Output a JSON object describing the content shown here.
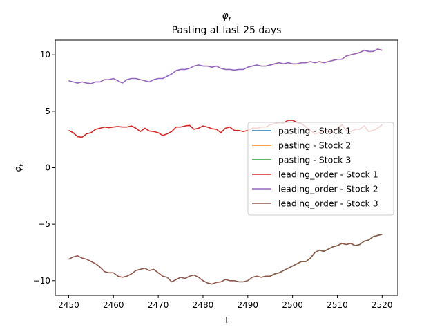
{
  "chart_data": {
    "type": "line",
    "title": "φ_t",
    "subtitle": "Pasting at last 25 days",
    "xlabel": "T",
    "ylabel": "φ_t",
    "xlim": [
      2447,
      2523.5
    ],
    "ylim": [
      -11.3,
      11.3
    ],
    "xticks": [
      2450,
      2460,
      2470,
      2480,
      2490,
      2500,
      2510,
      2520
    ],
    "yticks": [
      -10,
      -5,
      0,
      5,
      10
    ],
    "grid": false,
    "legend_position": "center-right",
    "series": [
      {
        "name": "pasting - Stock 1",
        "color": "#1f77b4",
        "x": [
          2495,
          2496,
          2497,
          2498,
          2499,
          2500,
          2501,
          2502,
          2503,
          2504,
          2505,
          2506,
          2507,
          2508,
          2509,
          2510,
          2511,
          2512,
          2513,
          2514,
          2515,
          2516,
          2517,
          2518,
          2519,
          2520
        ],
        "y": [
          3.8,
          3.9,
          4.0,
          3.95,
          4.2,
          4.2,
          4.0,
          3.9,
          3.6,
          3.3,
          3.0,
          3.1,
          3.3,
          3.2,
          3.1,
          3.5,
          3.8,
          3.3,
          3.2,
          3.4,
          3.4,
          3.7,
          3.2,
          3.3,
          3.5,
          3.8
        ]
      },
      {
        "name": "pasting - Stock 2",
        "color": "#ff7f0e",
        "x": [
          2495,
          2496,
          2497,
          2498,
          2499,
          2500,
          2501,
          2502,
          2503,
          2504,
          2505,
          2506,
          2507,
          2508,
          2509,
          2510,
          2511,
          2512,
          2513,
          2514,
          2515,
          2516,
          2517,
          2518,
          2519,
          2520
        ],
        "y": [
          9.1,
          9.2,
          9.3,
          9.2,
          9.3,
          9.2,
          9.2,
          9.3,
          9.3,
          9.4,
          9.3,
          9.4,
          9.3,
          9.4,
          9.5,
          9.6,
          9.6,
          9.9,
          10.0,
          10.1,
          10.2,
          10.4,
          10.3,
          10.3,
          10.5,
          10.4
        ]
      },
      {
        "name": "pasting - Stock 3",
        "color": "#2ca02c",
        "x": [
          2495,
          2496,
          2497,
          2498,
          2499,
          2500,
          2501,
          2502,
          2503,
          2504,
          2505,
          2506,
          2507,
          2508,
          2509,
          2510,
          2511,
          2512,
          2513,
          2514,
          2515,
          2516,
          2517,
          2518,
          2519,
          2520
        ],
        "y": [
          -9.6,
          -9.4,
          -9.3,
          -9.1,
          -8.9,
          -8.7,
          -8.5,
          -8.3,
          -8.3,
          -8.0,
          -7.5,
          -7.3,
          -7.4,
          -7.2,
          -7.0,
          -6.9,
          -6.7,
          -6.8,
          -6.7,
          -6.9,
          -6.8,
          -6.5,
          -6.4,
          -6.1,
          -6.0,
          -5.9
        ]
      },
      {
        "name": "leading_order - Stock 1",
        "color": "#d62728",
        "x": [
          2450,
          2451,
          2452,
          2453,
          2454,
          2455,
          2456,
          2457,
          2458,
          2459,
          2460,
          2461,
          2462,
          2463,
          2464,
          2465,
          2466,
          2467,
          2468,
          2469,
          2470,
          2471,
          2472,
          2473,
          2474,
          2475,
          2476,
          2477,
          2478,
          2479,
          2480,
          2481,
          2482,
          2483,
          2484,
          2485,
          2486,
          2487,
          2488,
          2489,
          2490,
          2491,
          2492,
          2493,
          2494,
          2495,
          2496,
          2497,
          2498,
          2499,
          2500,
          2501,
          2502,
          2503,
          2504,
          2505,
          2506,
          2507,
          2508,
          2509,
          2510,
          2511,
          2512,
          2513,
          2514,
          2515,
          2516,
          2517,
          2518,
          2519,
          2520
        ],
        "y": [
          3.3,
          3.1,
          2.75,
          2.7,
          3.0,
          3.1,
          3.4,
          3.5,
          3.6,
          3.55,
          3.6,
          3.65,
          3.6,
          3.6,
          3.7,
          3.5,
          3.2,
          3.5,
          3.25,
          3.2,
          3.1,
          2.85,
          3.0,
          3.2,
          3.6,
          3.6,
          3.7,
          3.75,
          3.4,
          3.5,
          3.7,
          3.6,
          3.45,
          3.4,
          3.1,
          3.5,
          3.6,
          3.3,
          3.3,
          3.2,
          3.3,
          3.5,
          3.5,
          3.6,
          3.6,
          3.8,
          3.9,
          4.0,
          3.95,
          4.2,
          4.2,
          4.0,
          3.9,
          3.6,
          3.3,
          3.0,
          3.1,
          3.3,
          3.2,
          3.1,
          3.5,
          3.8,
          3.3,
          3.2,
          3.4,
          3.4,
          3.7,
          3.2,
          3.3,
          3.5,
          3.8
        ]
      },
      {
        "name": "leading_order - Stock 2",
        "color": "#9467bd",
        "x": [
          2450,
          2451,
          2452,
          2453,
          2454,
          2455,
          2456,
          2457,
          2458,
          2459,
          2460,
          2461,
          2462,
          2463,
          2464,
          2465,
          2466,
          2467,
          2468,
          2469,
          2470,
          2471,
          2472,
          2473,
          2474,
          2475,
          2476,
          2477,
          2478,
          2479,
          2480,
          2481,
          2482,
          2483,
          2484,
          2485,
          2486,
          2487,
          2488,
          2489,
          2490,
          2491,
          2492,
          2493,
          2494,
          2495,
          2496,
          2497,
          2498,
          2499,
          2500,
          2501,
          2502,
          2503,
          2504,
          2505,
          2506,
          2507,
          2508,
          2509,
          2510,
          2511,
          2512,
          2513,
          2514,
          2515,
          2516,
          2517,
          2518,
          2519,
          2520
        ],
        "y": [
          7.7,
          7.6,
          7.5,
          7.6,
          7.5,
          7.45,
          7.6,
          7.6,
          7.8,
          7.8,
          7.9,
          7.7,
          7.5,
          7.8,
          7.9,
          7.9,
          7.8,
          7.7,
          7.6,
          7.8,
          7.9,
          7.9,
          8.1,
          8.3,
          8.6,
          8.7,
          8.7,
          8.8,
          9.0,
          9.1,
          9.0,
          9.0,
          8.9,
          9.0,
          8.8,
          8.7,
          8.7,
          8.65,
          8.7,
          8.7,
          8.9,
          9.0,
          9.1,
          9.0,
          9.0,
          9.1,
          9.2,
          9.3,
          9.2,
          9.3,
          9.2,
          9.2,
          9.3,
          9.3,
          9.4,
          9.3,
          9.4,
          9.3,
          9.4,
          9.5,
          9.6,
          9.6,
          9.9,
          10.0,
          10.1,
          10.2,
          10.4,
          10.3,
          10.3,
          10.5,
          10.4
        ]
      },
      {
        "name": "leading_order - Stock 3",
        "color": "#8c564b",
        "x": [
          2450,
          2451,
          2452,
          2453,
          2454,
          2455,
          2456,
          2457,
          2458,
          2459,
          2460,
          2461,
          2462,
          2463,
          2464,
          2465,
          2466,
          2467,
          2468,
          2469,
          2470,
          2471,
          2472,
          2473,
          2474,
          2475,
          2476,
          2477,
          2478,
          2479,
          2480,
          2481,
          2482,
          2483,
          2484,
          2485,
          2486,
          2487,
          2488,
          2489,
          2490,
          2491,
          2492,
          2493,
          2494,
          2495,
          2496,
          2497,
          2498,
          2499,
          2500,
          2501,
          2502,
          2503,
          2504,
          2505,
          2506,
          2507,
          2508,
          2509,
          2510,
          2511,
          2512,
          2513,
          2514,
          2515,
          2516,
          2517,
          2518,
          2519,
          2520
        ],
        "y": [
          -8.1,
          -7.9,
          -7.8,
          -8.0,
          -8.1,
          -8.3,
          -8.5,
          -8.8,
          -9.2,
          -9.3,
          -9.3,
          -9.6,
          -9.7,
          -9.6,
          -9.4,
          -9.1,
          -9.0,
          -8.9,
          -9.1,
          -9.0,
          -9.3,
          -9.6,
          -9.7,
          -10.1,
          -9.9,
          -9.7,
          -9.8,
          -9.6,
          -9.5,
          -9.7,
          -10.0,
          -10.2,
          -10.3,
          -10.15,
          -10.1,
          -9.9,
          -10.0,
          -10.0,
          -10.1,
          -10.1,
          -10.0,
          -9.7,
          -9.6,
          -9.7,
          -9.6,
          -9.6,
          -9.4,
          -9.3,
          -9.1,
          -8.9,
          -8.7,
          -8.5,
          -8.3,
          -8.3,
          -8.0,
          -7.5,
          -7.3,
          -7.4,
          -7.2,
          -7.0,
          -6.9,
          -6.7,
          -6.8,
          -6.7,
          -6.9,
          -6.8,
          -6.5,
          -6.4,
          -6.1,
          -6.0,
          -5.9
        ]
      }
    ]
  }
}
